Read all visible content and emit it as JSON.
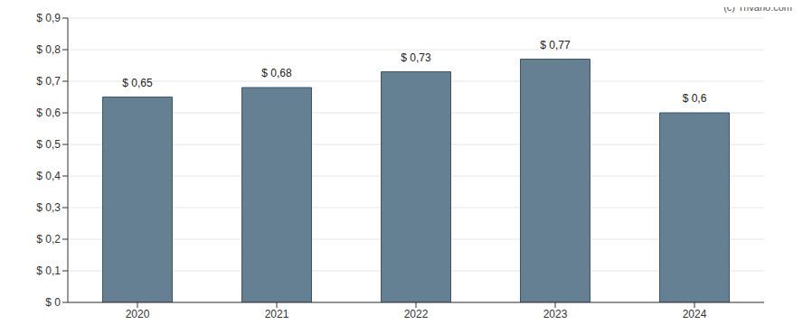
{
  "chart_data": {
    "type": "bar",
    "annotations": [
      "(c) Trivano.com"
    ],
    "categories": [
      "2020",
      "2021",
      "2022",
      "2023",
      "2024"
    ],
    "values": [
      0.65,
      0.68,
      0.73,
      0.77,
      0.6
    ],
    "value_labels": [
      "$ 0,65",
      "$ 0,68",
      "$ 0,73",
      "$ 0,77",
      "$ 0,6"
    ],
    "data_labels": true,
    "color": "#657f93",
    "ylim": [
      0,
      0.9
    ],
    "yticks": [
      {
        "value": 0,
        "label": "$ 0"
      },
      {
        "value": 0.1,
        "label": "$ 0,1"
      },
      {
        "value": 0.2,
        "label": "$ 0,2"
      },
      {
        "value": 0.3,
        "label": "$ 0,3"
      },
      {
        "value": 0.4,
        "label": "$ 0,4"
      },
      {
        "value": 0.5,
        "label": "$ 0,5"
      },
      {
        "value": 0.6,
        "label": "$ 0,6"
      },
      {
        "value": 0.7,
        "label": "$ 0,7"
      },
      {
        "value": 0.8,
        "label": "$ 0,8"
      },
      {
        "value": 0.9,
        "label": "$ 0,9"
      }
    ],
    "grid": true
  }
}
